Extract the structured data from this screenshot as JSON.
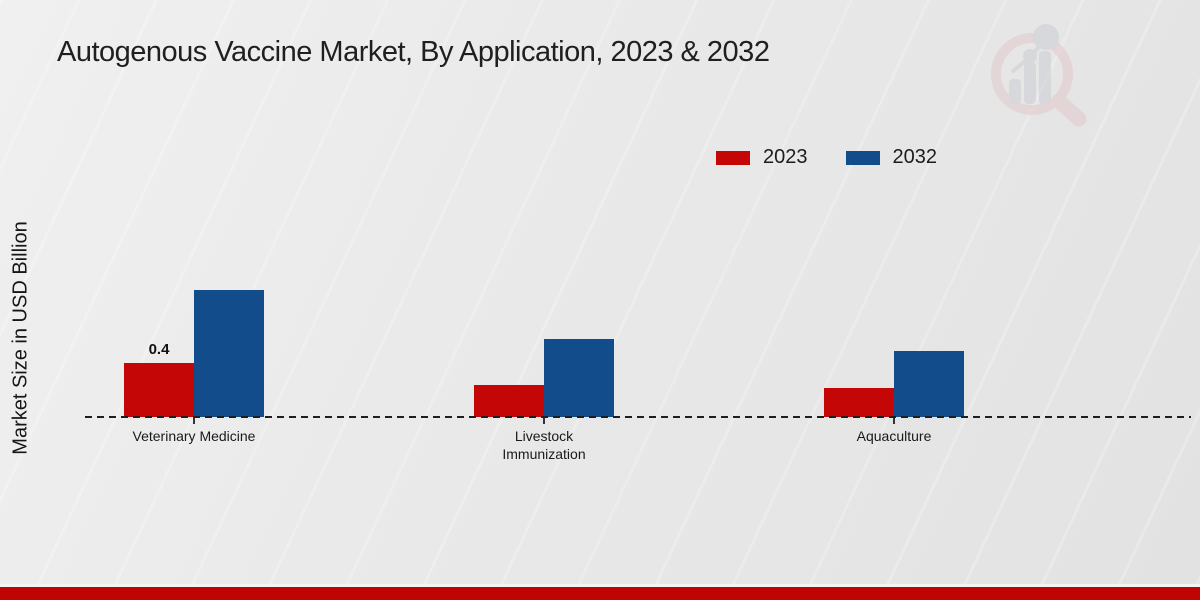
{
  "page_title": "Autogenous Vaccine Market, By Application, 2023 & 2032",
  "y_axis_label": "Market Size in USD Billion",
  "colors": {
    "series_2023_red": "#c50606",
    "series_2032_blue": "#134c8a",
    "footer_band_red": "#bf0404",
    "background_gray": "#e9e9e9",
    "text_dark": "#1f1f1f"
  },
  "legend": {
    "position": "top-right",
    "items": [
      {
        "label": "2023",
        "color": "#c50606"
      },
      {
        "label": "2032",
        "color": "#134c8a"
      }
    ]
  },
  "watermark_icon": "market-research-magnifier-bar-chart-logo",
  "chart_data": {
    "type": "bar",
    "title": "Autogenous Vaccine Market, By Application, 2023 & 2032",
    "xlabel": "",
    "ylabel": "Market Size in USD Billion",
    "categories": [
      "Veterinary Medicine",
      "Livestock Immunization",
      "Aquaculture"
    ],
    "series": [
      {
        "name": "2023",
        "color": "#c50606",
        "values": [
          0.4,
          0.24,
          0.22
        ],
        "data_labels": [
          "0.4",
          null,
          null
        ]
      },
      {
        "name": "2032",
        "color": "#134c8a",
        "values": [
          0.95,
          0.58,
          0.49
        ],
        "data_labels": [
          null,
          null,
          null
        ]
      }
    ],
    "ylim": [
      0,
      1.0
    ],
    "grid": false,
    "y_axis_ticks_visible": false,
    "baseline_style": "dashed",
    "legend_position": "top-right"
  }
}
